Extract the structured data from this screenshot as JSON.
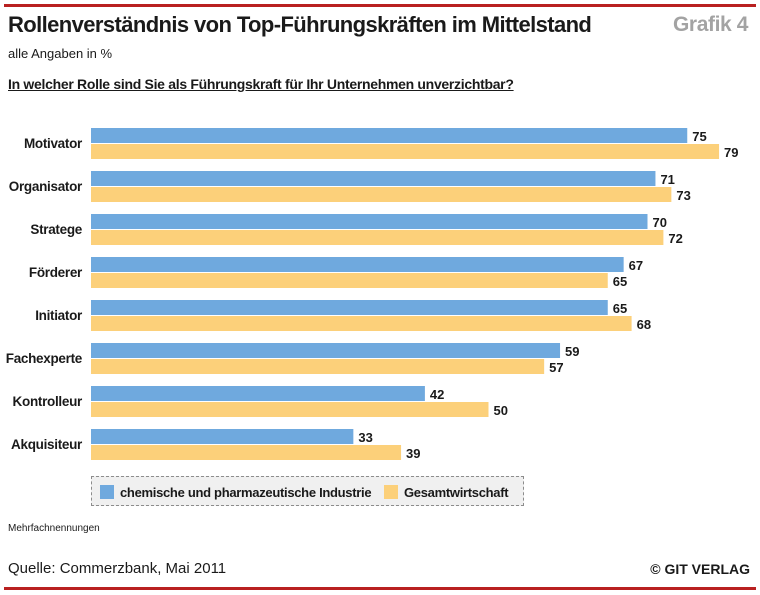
{
  "header": {
    "title": "Rollenverständnis von Top-Führungskräften im Mittelstand",
    "figure_label": "Grafik 4",
    "subtitle": "alle Angaben in %",
    "question": "In welcher Rolle sind Sie als Führungskraft für Ihr Unternehmen unverzichtbar?"
  },
  "colors": {
    "accent_rule": "#b92020",
    "series_1": "#6fa9de",
    "series_2": "#fcd07a"
  },
  "chart_data": {
    "type": "bar",
    "orientation": "horizontal",
    "categories": [
      "Motivator",
      "Organisator",
      "Stratege",
      "Förderer",
      "Initiator",
      "Fachexperte",
      "Kontrolleur",
      "Akquisiteur"
    ],
    "series": [
      {
        "name": "chemische und pharmazeutische Industrie",
        "values": [
          75,
          71,
          70,
          67,
          65,
          59,
          42,
          33
        ]
      },
      {
        "name": "Gesamtwirtschaft",
        "values": [
          79,
          73,
          72,
          65,
          68,
          57,
          50,
          39
        ]
      }
    ],
    "title": "Rollenverständnis von Top-Führungskräften im Mittelstand",
    "subtitle": "alle Angaben in %",
    "xlim": [
      0,
      80
    ],
    "grid": false,
    "legend_position": "bottom",
    "data_labels": true
  },
  "footer": {
    "note": "Mehrfachnennungen",
    "source": "Quelle: Commerzbank, Mai 2011",
    "publisher": "© GIT VERLAG"
  }
}
